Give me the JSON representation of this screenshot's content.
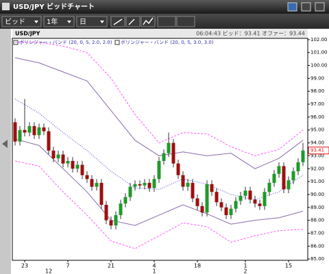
{
  "window": {
    "title": "USD/JPY ビッドチャート"
  },
  "toolbar": {
    "price_type": "ビッド",
    "period": "1年",
    "interval": "日"
  },
  "chart_data": {
    "type": "candlestick",
    "title": "USD/JPY",
    "subtitle": "06:04:43 ビッド：93.41 オファー：93.44",
    "categories": [
      null,
      null,
      "23",
      null,
      null,
      null,
      null,
      null,
      null,
      null,
      null,
      "7",
      null,
      null,
      null,
      null,
      null,
      null,
      null,
      null,
      "21",
      null,
      null,
      null,
      null,
      null,
      null,
      null,
      null,
      "4",
      null,
      null,
      null,
      null,
      null,
      null,
      null,
      null,
      "18",
      null,
      null,
      null,
      null,
      null,
      null,
      null,
      null,
      null,
      "1",
      null,
      null,
      null,
      null,
      null,
      null,
      null,
      null,
      "15",
      null,
      null,
      null
    ],
    "months": [
      null,
      null,
      null,
      null,
      null,
      null,
      null,
      "12",
      null,
      null,
      null,
      null,
      null,
      null,
      null,
      null,
      null,
      null,
      null,
      null,
      null,
      null,
      null,
      null,
      null,
      null,
      null,
      null,
      null,
      "1",
      null,
      null,
      null,
      null,
      null,
      null,
      null,
      null,
      null,
      null,
      null,
      null,
      null,
      null,
      null,
      null,
      null,
      null,
      "2",
      null,
      null,
      null,
      null,
      null,
      null,
      null,
      null,
      null,
      null,
      null,
      null
    ],
    "open": [
      95.6,
      94.1,
      95.0,
      94.8,
      95.3,
      94.6,
      95.2,
      94.9,
      93.4,
      92.8,
      93.1,
      92.4,
      92.6,
      92.0,
      92.3,
      91.5,
      91.2,
      90.6,
      90.9,
      89.2,
      88.0,
      87.6,
      88.4,
      89.3,
      89.8,
      90.6,
      90.8,
      90.7,
      90.9,
      90.5,
      91.2,
      92.6,
      93.2,
      94.0,
      92.4,
      91.5,
      90.6,
      90.9,
      89.7,
      89.1,
      88.6,
      90.8,
      90.2,
      89.4,
      89.0,
      88.4,
      88.9,
      89.5,
      89.9,
      90.3,
      89.6,
      89.3,
      89.1,
      90.2,
      90.9,
      91.6,
      92.2,
      90.4,
      91.1,
      91.8,
      92.5
    ],
    "high": [
      95.9,
      95.3,
      97.4,
      95.6,
      95.6,
      95.5,
      95.5,
      95.2,
      93.7,
      93.4,
      93.4,
      92.9,
      92.9,
      92.6,
      92.6,
      91.8,
      91.5,
      91.2,
      91.2,
      89.5,
      88.3,
      88.7,
      89.6,
      90.1,
      90.9,
      91.1,
      91.1,
      91.2,
      91.2,
      91.5,
      92.9,
      93.5,
      94.8,
      94.3,
      92.7,
      91.8,
      91.2,
      91.2,
      90.0,
      89.4,
      91.1,
      91.1,
      90.5,
      89.7,
      89.3,
      89.2,
      89.8,
      90.2,
      90.6,
      90.6,
      89.9,
      89.6,
      90.5,
      91.2,
      91.9,
      92.5,
      92.5,
      91.4,
      92.1,
      92.8,
      94.0
    ],
    "low": [
      93.8,
      93.8,
      94.5,
      94.5,
      94.3,
      94.3,
      94.6,
      93.1,
      92.5,
      92.5,
      92.1,
      92.1,
      91.7,
      91.7,
      91.2,
      90.9,
      90.3,
      90.3,
      88.9,
      87.7,
      87.3,
      87.3,
      88.1,
      89.0,
      89.5,
      90.3,
      90.4,
      90.4,
      90.2,
      90.2,
      90.9,
      92.3,
      92.9,
      92.1,
      91.2,
      90.3,
      90.3,
      89.4,
      88.8,
      88.3,
      88.3,
      89.9,
      89.1,
      88.7,
      88.1,
      88.1,
      88.6,
      89.2,
      89.6,
      89.3,
      89.0,
      88.8,
      88.8,
      89.9,
      90.6,
      91.3,
      90.1,
      90.1,
      90.8,
      91.5,
      92.2
    ],
    "close": [
      94.1,
      95.0,
      94.8,
      95.3,
      94.6,
      95.2,
      94.9,
      93.4,
      92.8,
      93.1,
      92.4,
      92.6,
      92.0,
      92.3,
      91.5,
      91.2,
      90.6,
      90.9,
      89.2,
      88.0,
      87.6,
      88.4,
      89.3,
      89.8,
      90.6,
      90.8,
      90.7,
      90.9,
      90.5,
      91.2,
      92.6,
      93.2,
      94.0,
      92.4,
      91.5,
      90.6,
      90.9,
      89.7,
      89.1,
      88.6,
      90.8,
      90.2,
      89.4,
      89.0,
      88.4,
      88.9,
      89.5,
      89.9,
      90.3,
      89.6,
      89.3,
      89.1,
      90.2,
      90.9,
      91.6,
      92.2,
      90.4,
      91.1,
      91.8,
      92.5,
      93.41
    ],
    "up_color": "#1f9a2a",
    "down_color": "#9c1010",
    "last_price": 93.41,
    "last_price_color": "#e01010",
    "band_x": [
      0,
      5,
      10,
      15,
      20,
      25,
      30,
      35,
      40,
      45,
      50,
      55,
      60
    ],
    "overlays": [
      {
        "label": "ボリンジャー・バンド (20, 0, S, 2.0, 2.0)",
        "color": "#8a6aaa",
        "style": "solid",
        "upper": [
          100.6,
          100.2,
          99.5,
          98.8,
          96.5,
          94.2,
          93.0,
          93.3,
          93.0,
          93.2,
          92.0,
          92.8,
          94.2
        ],
        "lower": [
          94.3,
          93.8,
          92.0,
          90.2,
          88.0,
          87.6,
          88.4,
          89.2,
          88.5,
          87.7,
          88.0,
          88.2,
          88.7
        ],
        "middle": [
          97.4,
          96.3,
          94.8,
          93.4,
          91.8,
          90.5,
          90.4,
          91.2,
          90.8,
          90.0,
          89.6,
          90.2,
          91.5
        ],
        "middle_color": "#3a3ae0"
      },
      {
        "label": "ボリンジャー・バンド (20, 0, S, 3.0, 3.0)",
        "color": "#ff55ff",
        "style": "dashed",
        "upper": [
          101.8,
          101.8,
          101.5,
          101.0,
          99.0,
          96.2,
          94.0,
          94.8,
          94.7,
          93.7,
          93.0,
          93.5,
          95.0
        ],
        "lower": [
          92.6,
          92.2,
          90.2,
          88.4,
          86.4,
          85.8,
          86.8,
          87.8,
          87.5,
          86.3,
          86.8,
          87.2,
          87.3
        ]
      }
    ],
    "ylim": [
      84.9,
      102.1
    ],
    "yticks": [
      {
        "value": 85,
        "label": "85.00"
      },
      {
        "value": 86,
        "label": "86.00"
      },
      {
        "value": 87,
        "label": "87.00"
      },
      {
        "value": 88,
        "label": "88.00"
      },
      {
        "value": 89,
        "label": "89.00"
      },
      {
        "value": 90,
        "label": "90.00"
      },
      {
        "value": 91,
        "label": "91.00"
      },
      {
        "value": 92,
        "label": "92.00"
      },
      {
        "value": 93,
        "label": "93.00"
      },
      {
        "value": 94,
        "label": "94.00"
      },
      {
        "value": 95,
        "label": "95.00"
      },
      {
        "value": 96,
        "label": "96.00"
      },
      {
        "value": 97,
        "label": "97.00"
      },
      {
        "value": 98,
        "label": "98.00"
      },
      {
        "value": 99,
        "label": "99.00"
      },
      {
        "value": 100,
        "label": "100.00"
      },
      {
        "value": 101,
        "label": "101.00"
      },
      {
        "value": 102,
        "label": "102.00"
      }
    ],
    "grid": false
  }
}
